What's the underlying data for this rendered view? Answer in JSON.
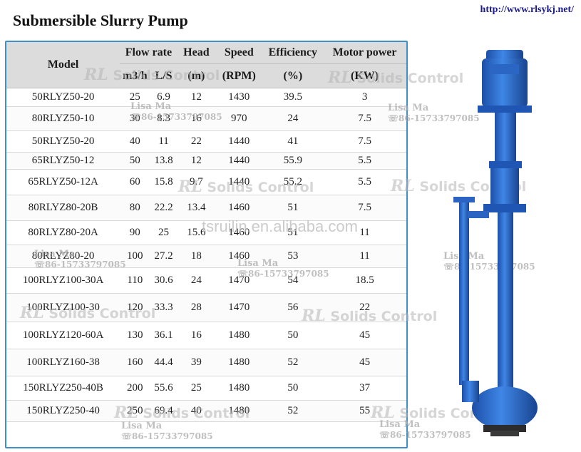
{
  "title": "Submersible Slurry Pump",
  "url": "http://www.rlsykj.net/",
  "table": {
    "header_top": [
      "Model",
      "Flow rate",
      "Head",
      "Speed",
      "Efficiency",
      "Motor power"
    ],
    "header_units": [
      "m3/h",
      "L/S",
      "(m)",
      "(RPM)",
      "(%)",
      "(KW)"
    ],
    "rows": [
      [
        "50RLYZ50-20",
        "25",
        "6.9",
        "12",
        "1430",
        "39.5",
        "3"
      ],
      [
        "80RLYZ50-10",
        "30",
        "8.3",
        "16",
        "970",
        "24",
        "7.5"
      ],
      [
        "50RLYZ50-20",
        "40",
        "11",
        "22",
        "1440",
        "41",
        "7.5"
      ],
      [
        "65RLYZ50-12",
        "50",
        "13.8",
        "12",
        "1440",
        "55.9",
        "5.5"
      ],
      [
        "65RLYZ50-12A",
        "60",
        "15.8",
        "9.7",
        "1440",
        "55.2",
        "5.5"
      ],
      [
        "80RLYZ80-20B",
        "80",
        "22.2",
        "13.4",
        "1460",
        "51",
        "7.5"
      ],
      [
        "80RLYZ80-20A",
        "90",
        "25",
        "15.6",
        "1460",
        "51",
        "11"
      ],
      [
        "80RLYZ80-20",
        "100",
        "27.2",
        "18",
        "1460",
        "53",
        "11"
      ],
      [
        "100RLYZ100-30A",
        "110",
        "30.6",
        "24",
        "1470",
        "54",
        "18.5"
      ],
      [
        "100RLYZ100-30",
        "120",
        "33.3",
        "28",
        "1470",
        "56",
        "22"
      ],
      [
        "100RLYZ120-60A",
        "130",
        "36.1",
        "16",
        "1480",
        "50",
        "45"
      ],
      [
        "100RLYZ160-38",
        "160",
        "44.4",
        "39",
        "1480",
        "52",
        "45"
      ],
      [
        "150RLYZ250-40B",
        "200",
        "55.6",
        "25",
        "1480",
        "50",
        "37"
      ],
      [
        "150RLYZ250-40",
        "250",
        "69.4",
        "40",
        "1480",
        "52",
        "55"
      ]
    ]
  },
  "watermarks": {
    "brand_rl": "RL",
    "brand_text": "Solids Control",
    "contact_name": "Lisa Ma",
    "contact_phone": "86-15733797085",
    "site": "tsruilin.en.alibaba.com"
  },
  "colors": {
    "table_border": "#3f8fc8",
    "header_bg": "#dcdcdc",
    "pump_blue": "#2d6fcf"
  }
}
